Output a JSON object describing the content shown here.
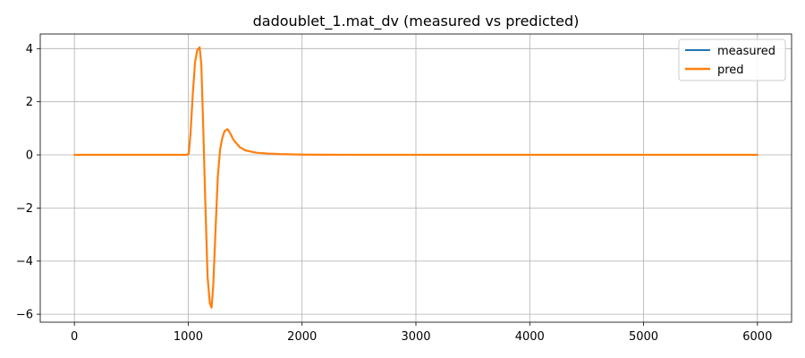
{
  "chart_data": {
    "type": "line",
    "title": "dadoublet_1.mat_dv  (measured vs predicted)",
    "xlabel": "",
    "ylabel": "",
    "xlim": [
      -300,
      6300
    ],
    "ylim": [
      -6.3,
      4.55
    ],
    "xticks": [
      0,
      1000,
      2000,
      3000,
      4000,
      5000,
      6000
    ],
    "xtick_labels": [
      "0",
      "1000",
      "2000",
      "3000",
      "4000",
      "5000",
      "6000"
    ],
    "yticks": [
      -6,
      -4,
      -2,
      0,
      2,
      4
    ],
    "ytick_labels": [
      "−6",
      "−4",
      "−2",
      "0",
      "2",
      "4"
    ],
    "grid": true,
    "legend_position": "top-right",
    "series": [
      {
        "name": "measured",
        "color": "#1f77b4",
        "x": [
          0,
          500,
          990,
          1005,
          1020,
          1040,
          1060,
          1080,
          1100,
          1115,
          1130,
          1150,
          1170,
          1190,
          1205,
          1220,
          1240,
          1260,
          1280,
          1300,
          1320,
          1345,
          1370,
          1400,
          1450,
          1500,
          1600,
          1700,
          1800,
          2000,
          2200,
          2500,
          3000,
          4000,
          5000,
          6000
        ],
        "y": [
          0,
          0,
          0,
          0.05,
          0.8,
          2.3,
          3.5,
          3.95,
          4.05,
          3.4,
          1.3,
          -1.8,
          -4.6,
          -5.6,
          -5.75,
          -4.9,
          -2.8,
          -0.8,
          0.2,
          0.65,
          0.9,
          0.97,
          0.8,
          0.55,
          0.3,
          0.17,
          0.08,
          0.05,
          0.03,
          0.01,
          0.005,
          0,
          0,
          0,
          0,
          0
        ]
      },
      {
        "name": "pred",
        "color": "#ff7f0e",
        "x": [
          0,
          500,
          990,
          1005,
          1020,
          1040,
          1060,
          1080,
          1100,
          1115,
          1130,
          1150,
          1170,
          1190,
          1205,
          1220,
          1240,
          1260,
          1280,
          1300,
          1320,
          1345,
          1370,
          1400,
          1450,
          1500,
          1600,
          1700,
          1800,
          2000,
          2200,
          2500,
          3000,
          4000,
          5000,
          6000
        ],
        "y": [
          0,
          0,
          0,
          0.05,
          0.8,
          2.3,
          3.5,
          3.95,
          4.05,
          3.4,
          1.3,
          -1.8,
          -4.6,
          -5.6,
          -5.75,
          -4.9,
          -2.8,
          -0.8,
          0.2,
          0.65,
          0.9,
          0.97,
          0.8,
          0.55,
          0.3,
          0.17,
          0.08,
          0.05,
          0.03,
          0.01,
          0.005,
          0,
          0,
          0,
          0,
          0
        ]
      }
    ]
  }
}
